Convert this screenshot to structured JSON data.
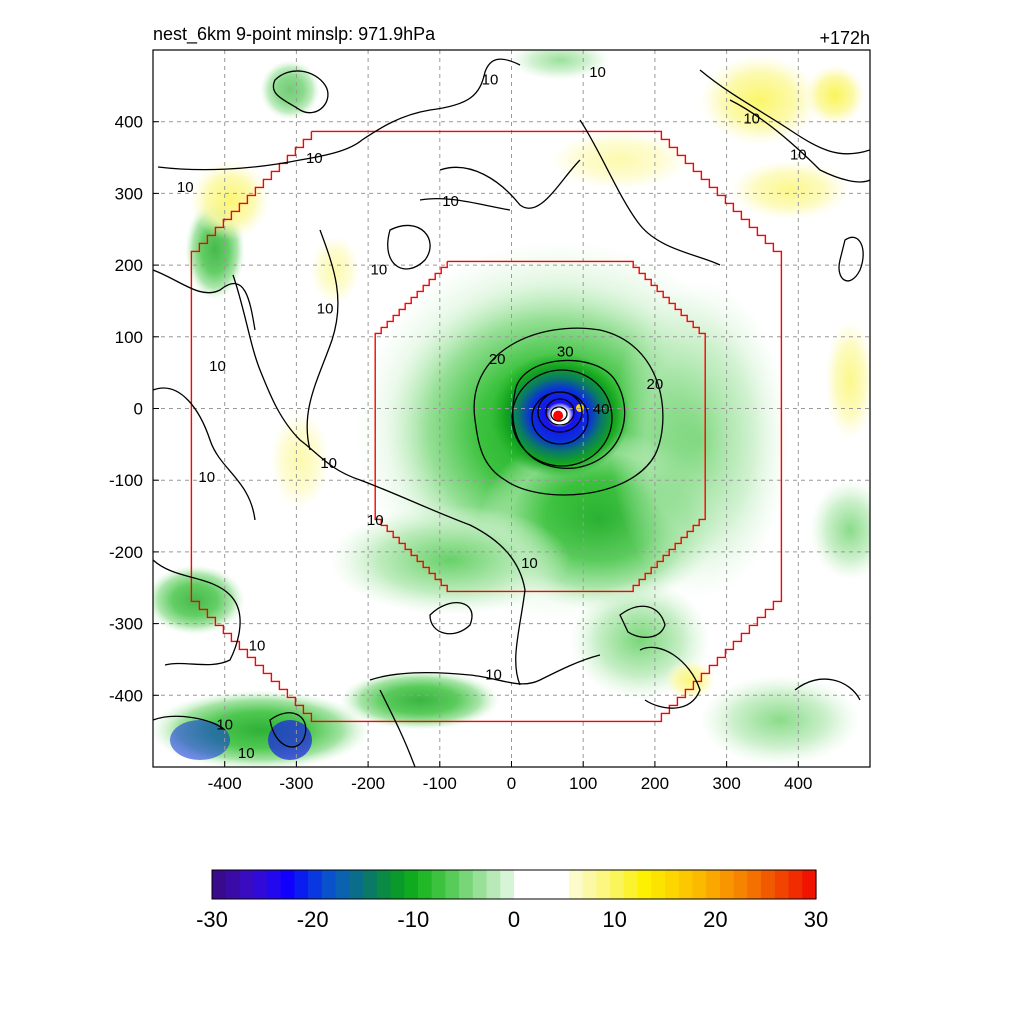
{
  "chart_data": {
    "type": "heatmap",
    "title_left": "nest_6km  9-point minslp: 971.9hPa",
    "title_right": "+172h",
    "xlim": [
      -500,
      500
    ],
    "ylim": [
      -500,
      500
    ],
    "x_ticks": [
      -400,
      -300,
      -200,
      -100,
      0,
      100,
      200,
      300,
      400
    ],
    "y_ticks": [
      400,
      300,
      200,
      100,
      0,
      -100,
      -200,
      -300,
      -400
    ],
    "grid": true,
    "storm_center": {
      "x": 65,
      "y": -10,
      "marker_color": "#ff0000"
    },
    "contour_levels": [
      10,
      20,
      30,
      40
    ],
    "contour_labels": [
      {
        "text": "10",
        "x": -455,
        "y": 305
      },
      {
        "text": "10",
        "x": -260,
        "y": 135
      },
      {
        "text": "10",
        "x": -410,
        "y": 55
      },
      {
        "text": "10",
        "x": -425,
        "y": -100
      },
      {
        "text": "10",
        "x": -255,
        "y": -80
      },
      {
        "text": "10",
        "x": -185,
        "y": 190
      },
      {
        "text": "10",
        "x": -275,
        "y": 345
      },
      {
        "text": "10",
        "x": -85,
        "y": 285
      },
      {
        "text": "10",
        "x": -30,
        "y": 455
      },
      {
        "text": "10",
        "x": -190,
        "y": -160
      },
      {
        "text": "10",
        "x": 25,
        "y": -220
      },
      {
        "text": "10",
        "x": -355,
        "y": -335
      },
      {
        "text": "10",
        "x": -25,
        "y": -375
      },
      {
        "text": "10",
        "x": -400,
        "y": -445
      },
      {
        "text": "10",
        "x": -370,
        "y": -485
      },
      {
        "text": "10",
        "x": 120,
        "y": 465
      },
      {
        "text": "10",
        "x": 335,
        "y": 400
      },
      {
        "text": "10",
        "x": 400,
        "y": 350
      },
      {
        "text": "20",
        "x": -20,
        "y": 65
      },
      {
        "text": "20",
        "x": 200,
        "y": 30
      },
      {
        "text": "30",
        "x": 75,
        "y": 75
      },
      {
        "text": "40",
        "x": 125,
        "y": -5
      }
    ],
    "inner_nest_boundary_color": "#ff0000",
    "outer_nest_boundary_color": "#ff0000",
    "colorbar": {
      "min": -30,
      "max": 30,
      "tick_values": [
        -30,
        -20,
        -10,
        0,
        10,
        20,
        30
      ],
      "tick_labels": [
        "-30",
        "-20",
        "-10",
        "0",
        "10",
        "20",
        "30"
      ],
      "colors": [
        "#3a0a8c",
        "#3a0ba6",
        "#3a0cc0",
        "#2f0ad9",
        "#2208ee",
        "#1200ff",
        "#0a1cf0",
        "#0a38e0",
        "#0a52cc",
        "#0a62b0",
        "#0a6e8a",
        "#0a7a66",
        "#0a8a44",
        "#0a9a2c",
        "#10aa20",
        "#22b828",
        "#3cc23e",
        "#58cc58",
        "#78d678",
        "#98e098",
        "#b8eab8",
        "#d6f4d6",
        "#ffffff",
        "#ffffff",
        "#ffffff",
        "#ffffff",
        "#fdfbcc",
        "#fcf9a6",
        "#fbf780",
        "#faf55a",
        "#fbf230",
        "#fdf000",
        "#fde400",
        "#fdd600",
        "#fcc800",
        "#fbba00",
        "#faa800",
        "#f89600",
        "#f68400",
        "#f47000",
        "#f25a00",
        "#f04400",
        "#f02c00",
        "#f01400"
      ]
    }
  }
}
